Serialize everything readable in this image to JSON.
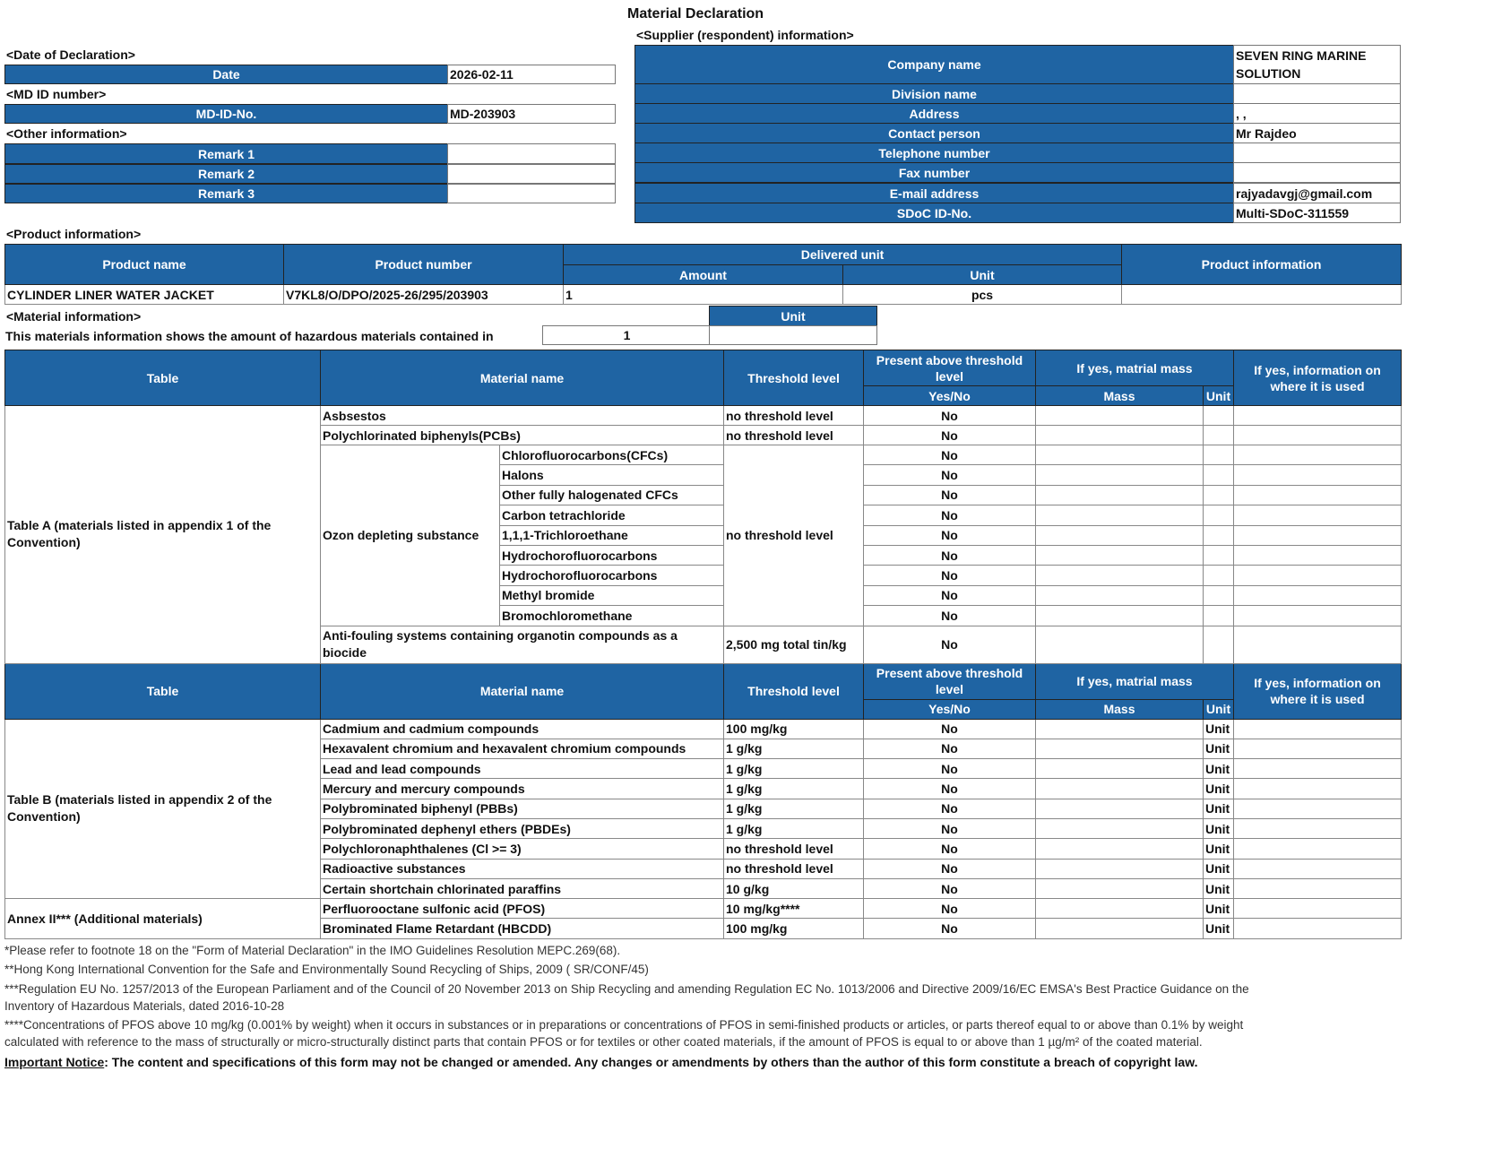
{
  "title": "Material Declaration",
  "declaration": {
    "section": "<Date of Declaration>",
    "label": "Date",
    "value": "2026-02-11"
  },
  "md_id": {
    "section": "<MD ID number>",
    "label": "MD-ID-No.",
    "value": "MD-203903"
  },
  "other": {
    "section": "<Other information>",
    "remarks": [
      {
        "label": "Remark 1",
        "value": ""
      },
      {
        "label": "Remark 2",
        "value": ""
      },
      {
        "label": "Remark 3",
        "value": ""
      }
    ]
  },
  "supplier": {
    "section": "<Supplier (respondent) information>",
    "rows": [
      {
        "label": "Company name",
        "value": "SEVEN RING MARINE SOLUTION"
      },
      {
        "label": "Division name",
        "value": ""
      },
      {
        "label": "Address",
        "value": ", ,"
      },
      {
        "label": "Contact person",
        "value": "Mr Rajdeo"
      },
      {
        "label": "Telephone number",
        "value": ""
      },
      {
        "label": "Fax number",
        "value": ""
      },
      {
        "label": "E-mail address",
        "value": "rajyadavgj@gmail.com"
      },
      {
        "label": "SDoC ID-No.",
        "value": "Multi-SDoC-311559"
      }
    ]
  },
  "product": {
    "section": "<Product information>",
    "headers": {
      "name": "Product name",
      "number": "Product number",
      "delivered": "Delivered unit",
      "amount": "Amount",
      "unit": "Unit",
      "info": "Product information"
    },
    "row": {
      "name": "CYLINDER LINER WATER JACKET",
      "number": "V7KL8/O/DPO/2025-26/295/203903",
      "amount": "1",
      "unit": "pcs",
      "info": ""
    }
  },
  "material": {
    "section": "<Material information>",
    "unit_label": "Unit",
    "statement": "This materials information shows the amount of hazardous materials contained in",
    "quantity": "1",
    "unit_value": "",
    "headers": {
      "table": "Table",
      "name": "Material name",
      "threshold": "Threshold level",
      "present": "Present above threshold level",
      "yesno": "Yes/No",
      "mass_head": "If yes, matrial mass",
      "mass": "Mass",
      "unit": "Unit",
      "info": "If yes, information on where it is used"
    },
    "table_a": {
      "label": "Table A (materials listed in appendix 1 of the Convention)",
      "asbestos": {
        "name": "Asbsestos",
        "threshold": "no threshold level",
        "answer": "No"
      },
      "pcbs": {
        "name": "Polychlorinated biphenyls(PCBs)",
        "threshold": "no threshold level",
        "answer": "No"
      },
      "ozone": {
        "group": "Ozon depleting substance",
        "threshold": "no threshold level",
        "items": [
          {
            "name": "Chlorofluorocarbons(CFCs)",
            "answer": "No"
          },
          {
            "name": "Halons",
            "answer": "No"
          },
          {
            "name": "Other fully halogenated CFCs",
            "answer": "No"
          },
          {
            "name": "Carbon tetrachloride",
            "answer": "No"
          },
          {
            "name": "1,1,1-Trichloroethane",
            "answer": "No"
          },
          {
            "name": "Hydrochorofluorocarbons",
            "answer": "No"
          },
          {
            "name": "Hydrochorofluorocarbons",
            "answer": "No"
          },
          {
            "name": "Methyl bromide",
            "answer": "No"
          },
          {
            "name": "Bromochloromethane",
            "answer": "No"
          }
        ]
      },
      "antifouling": {
        "name": "Anti-fouling systems containing organotin compounds as a biocide",
        "threshold": "2,500 mg total tin/kg",
        "answer": "No"
      }
    },
    "table_b": {
      "label": "Table B (materials listed in appendix 2 of the Convention)",
      "rows": [
        {
          "name": "Cadmium and cadmium compounds",
          "threshold": "100 mg/kg",
          "answer": "No",
          "unit": "Unit"
        },
        {
          "name": "Hexavalent chromium and hexavalent chromium compounds",
          "threshold": "1 g/kg",
          "answer": "No",
          "unit": "Unit"
        },
        {
          "name": "Lead and lead compounds",
          "threshold": "1 g/kg",
          "answer": "No",
          "unit": "Unit"
        },
        {
          "name": "Mercury and mercury compounds",
          "threshold": "1 g/kg",
          "answer": "No",
          "unit": "Unit"
        },
        {
          "name": "Polybrominated biphenyl (PBBs)",
          "threshold": "1 g/kg",
          "answer": "No",
          "unit": "Unit"
        },
        {
          "name": "Polybrominated dephenyl ethers (PBDEs)",
          "threshold": "1 g/kg",
          "answer": "No",
          "unit": "Unit"
        },
        {
          "name": "Polychloronaphthalenes (Cl >= 3)",
          "threshold": "no threshold level",
          "answer": "No",
          "unit": "Unit"
        },
        {
          "name": "Radioactive substances",
          "threshold": "no threshold level",
          "answer": "No",
          "unit": "Unit"
        },
        {
          "name": "Certain shortchain chlorinated paraffins",
          "threshold": "10 g/kg",
          "answer": "No",
          "unit": "Unit"
        }
      ]
    },
    "annex": {
      "label": "Annex II*** (Additional materials)",
      "rows": [
        {
          "name": "Perfluorooctane sulfonic acid (PFOS)",
          "threshold": "10 mg/kg****",
          "answer": "No",
          "unit": "Unit"
        },
        {
          "name": "Brominated Flame Retardant (HBCDD)",
          "threshold": "100 mg/kg",
          "answer": "No",
          "unit": "Unit"
        }
      ]
    }
  },
  "footnotes": [
    "*Please refer to footnote 18 on the \"Form of Material Declaration\" in the IMO Guidelines Resolution MEPC.269(68).",
    "**Hong Kong International Convention for the Safe and Environmentally Sound Recycling of Ships, 2009 ( SR/CONF/45)",
    "***Regulation EU No. 1257/2013 of the European Parliament and of the Council of 20 November 2013 on Ship Recycling and amending Regulation EC No. 1013/2006 and Directive 2009/16/EC EMSA's Best Practice Guidance on the",
    "Inventory of Hazardous Materials, dated 2016-10-28",
    "****Concentrations of PFOS above 10 mg/kg (0.001% by weight) when it occurs in substances or in preparations or concentrations of PFOS in semi-finished products or articles, or parts thereof equal to or above than 0.1% by weight",
    "calculated with reference to the mass of structurally or micro-structurally distinct parts that contain PFOS or for textiles or other coated materials, if the amount of PFOS is equal to or above than 1 µg/m² of the coated material."
  ],
  "notice": {
    "label": "Important Notice",
    "text": ": The content and specifications of this form may not be changed or amended. Any changes or amendments by others than the author of this form constitute a breach of copyright law."
  },
  "colors": {
    "header_blue": "#1f64a3"
  }
}
